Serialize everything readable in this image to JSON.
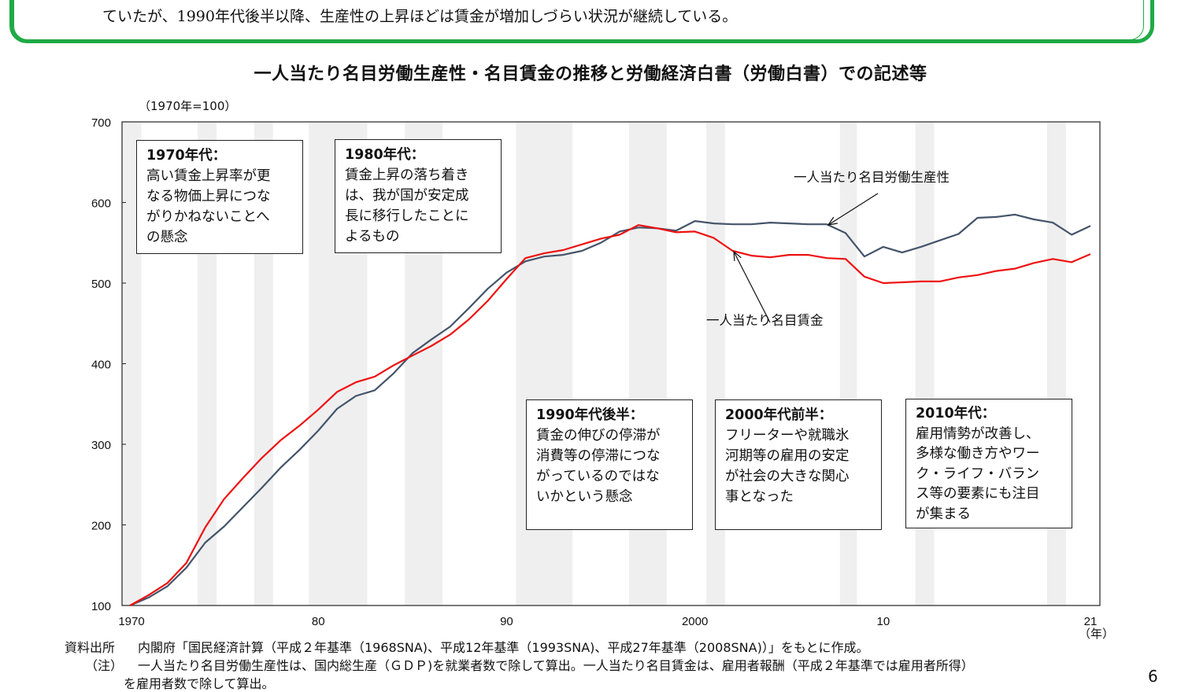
{
  "summary_text": "ていたが、1990年代後半以降、生産性の上昇ほどは賃金が増加しづらい状況が継続している。",
  "colors": {
    "frame_green": "#1faa45",
    "productivity": "#44546a",
    "wage": "#ee1111",
    "shade": "#efefef"
  },
  "chart_data": {
    "type": "line",
    "title": "一人当たり名目労働生産性・名目賃金の推移と労働経済白書（労働白書）での記述等",
    "unit_label": "（1970年=100）",
    "xlabel": "（年）",
    "ylim": [
      100,
      700
    ],
    "yticks": [
      "100",
      "200",
      "300",
      "400",
      "500",
      "600",
      "700"
    ],
    "xlim": [
      1970,
      2021
    ],
    "xticks": [
      {
        "year": 1970,
        "label": "1970"
      },
      {
        "year": 1980,
        "label": "80"
      },
      {
        "year": 1990,
        "label": "90"
      },
      {
        "year": 2000,
        "label": "2000"
      },
      {
        "year": 2010,
        "label": "10"
      },
      {
        "year": 2021,
        "label": "21"
      }
    ],
    "grid": false,
    "shaded_periods": [
      [
        1969.6,
        1970.6
      ],
      [
        1973.6,
        1974.6
      ],
      [
        1976.6,
        1977.6
      ],
      [
        1979.5,
        1982.6
      ],
      [
        1984.6,
        1986.6
      ],
      [
        1990.5,
        1993.5
      ],
      [
        1996.5,
        1998.5
      ],
      [
        2000.6,
        2001.6
      ],
      [
        2007.7,
        2008.6
      ],
      [
        2011.7,
        2012.7
      ],
      [
        2018.7,
        2019.7
      ]
    ],
    "x": [
      1970,
      1971,
      1972,
      1973,
      1974,
      1975,
      1976,
      1977,
      1978,
      1979,
      1980,
      1981,
      1982,
      1983,
      1984,
      1985,
      1986,
      1987,
      1988,
      1989,
      1990,
      1991,
      1992,
      1993,
      1994,
      1995,
      1996,
      1997,
      1998,
      1999,
      2000,
      2001,
      2002,
      2003,
      2004,
      2005,
      2006,
      2007,
      2008,
      2009,
      2010,
      2011,
      2012,
      2013,
      2014,
      2015,
      2016,
      2017,
      2018,
      2019,
      2020,
      2021
    ],
    "series": [
      {
        "name": "一人当たり名目労働生産性",
        "color": "#44546a",
        "values": [
          100,
          110,
          124,
          147,
          178,
          198,
          222,
          246,
          271,
          293,
          317,
          344,
          360,
          367,
          388,
          413,
          430,
          446,
          469,
          493,
          513,
          527,
          533,
          535,
          540,
          550,
          564,
          569,
          568,
          565,
          577,
          574,
          573,
          573,
          575,
          574,
          573,
          573,
          562,
          533,
          545,
          538,
          545,
          553,
          561,
          581,
          582,
          585,
          579,
          575,
          560,
          571
        ]
      },
      {
        "name": "一人当たり名目賃金",
        "color": "#ee1111",
        "values": [
          100,
          113,
          128,
          153,
          197,
          232,
          258,
          283,
          305,
          323,
          343,
          365,
          377,
          384,
          398,
          410,
          422,
          436,
          455,
          478,
          505,
          531,
          537,
          541,
          548,
          555,
          560,
          572,
          568,
          563,
          564,
          556,
          540,
          534,
          532,
          535,
          535,
          531,
          530,
          508,
          500,
          501,
          502,
          502,
          507,
          510,
          515,
          518,
          525,
          530,
          526,
          536
        ]
      }
    ],
    "annotations": [
      {
        "heading": "1970年代：",
        "lines": [
          "高い賃金上昇率が更",
          "なる物価上昇につな",
          "がりかねないことへ",
          "の懸念"
        ]
      },
      {
        "heading": "1980年代：",
        "lines": [
          "賃金上昇の落ち着き",
          "は、我が国が安定成",
          "長に移行したことに",
          "よるもの"
        ]
      },
      {
        "heading": "1990年代後半：",
        "lines": [
          "賃金の伸びの停滞が",
          "消費等の停滞につな",
          "がっているのではな",
          "いかという懸念"
        ]
      },
      {
        "heading": "2000年代前半：",
        "lines": [
          "フリーターや就職氷",
          "河期等の雇用の安定",
          "が社会の大きな関心",
          "事となった"
        ]
      },
      {
        "heading": "2010年代：",
        "lines": [
          "雇用情勢が改善し、",
          "多様な働き方やワー",
          "ク・ライフ・バラン",
          "ス等の要素にも注目",
          "が集まる"
        ]
      }
    ]
  },
  "footer": {
    "source_label": "資料出所",
    "source_text": "内閣府「国民経済計算（平成２年基準（1968SNA)、平成12年基準（1993SNA)、平成27年基準（2008SNA)）」をもとに作成。",
    "note_label": "（注）",
    "note_line1": "一人当たり名目労働生産性は、国内総生産（ＧＤＰ)を就業者数で除して算出。一人当たり名目賃金は、雇用者報酬（平成２年基準では雇用者所得）",
    "note_line2": "を雇用者数で除して算出。"
  },
  "page_number": "6"
}
